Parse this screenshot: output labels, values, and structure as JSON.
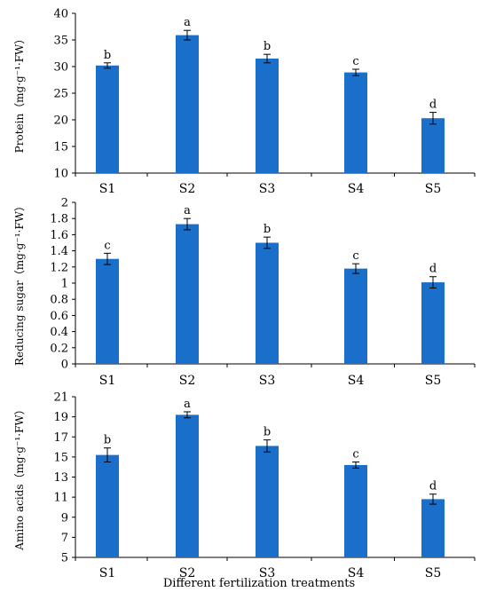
{
  "colors": {
    "bar": "#1a6fca",
    "axis": "#000000"
  },
  "xlabel": "Different fertilization treatments",
  "chart_data": [
    {
      "type": "bar",
      "ylabel": "Protein（mg·g⁻¹·FW）",
      "categories": [
        "S1",
        "S2",
        "S3",
        "S4",
        "S5"
      ],
      "values": [
        30.2,
        35.9,
        31.5,
        28.9,
        20.3
      ],
      "errors": [
        0.5,
        0.9,
        0.8,
        0.6,
        1.1
      ],
      "letters": [
        "b",
        "a",
        "b",
        "c",
        "d"
      ],
      "ylim": [
        10,
        40
      ],
      "ticks": [
        "10",
        "15",
        "20",
        "25",
        "30",
        "35",
        "40"
      ]
    },
    {
      "type": "bar",
      "ylabel": "Reducing sugar（mg·g⁻¹·FW）",
      "categories": [
        "S1",
        "S2",
        "S3",
        "S4",
        "S5"
      ],
      "values": [
        1.3,
        1.73,
        1.5,
        1.18,
        1.01
      ],
      "errors": [
        0.07,
        0.07,
        0.07,
        0.06,
        0.07
      ],
      "letters": [
        "c",
        "a",
        "b",
        "c",
        "d"
      ],
      "ylim": [
        0,
        2
      ],
      "ticks": [
        "0",
        "0.2",
        "0.4",
        "0.6",
        "0.8",
        "1",
        "1.2",
        "1.4",
        "1.6",
        "1.8",
        "2"
      ]
    },
    {
      "type": "bar",
      "ylabel": "Amino acids（mg·g⁻¹·FW）",
      "categories": [
        "S1",
        "S2",
        "S3",
        "S4",
        "S5"
      ],
      "values": [
        15.2,
        19.2,
        16.1,
        14.2,
        10.8
      ],
      "errors": [
        0.7,
        0.3,
        0.6,
        0.3,
        0.5
      ],
      "letters": [
        "b",
        "a",
        "b",
        "c",
        "d"
      ],
      "ylim": [
        5,
        21
      ],
      "ticks": [
        "5",
        "7",
        "9",
        "11",
        "13",
        "15",
        "17",
        "19",
        "21"
      ]
    }
  ]
}
